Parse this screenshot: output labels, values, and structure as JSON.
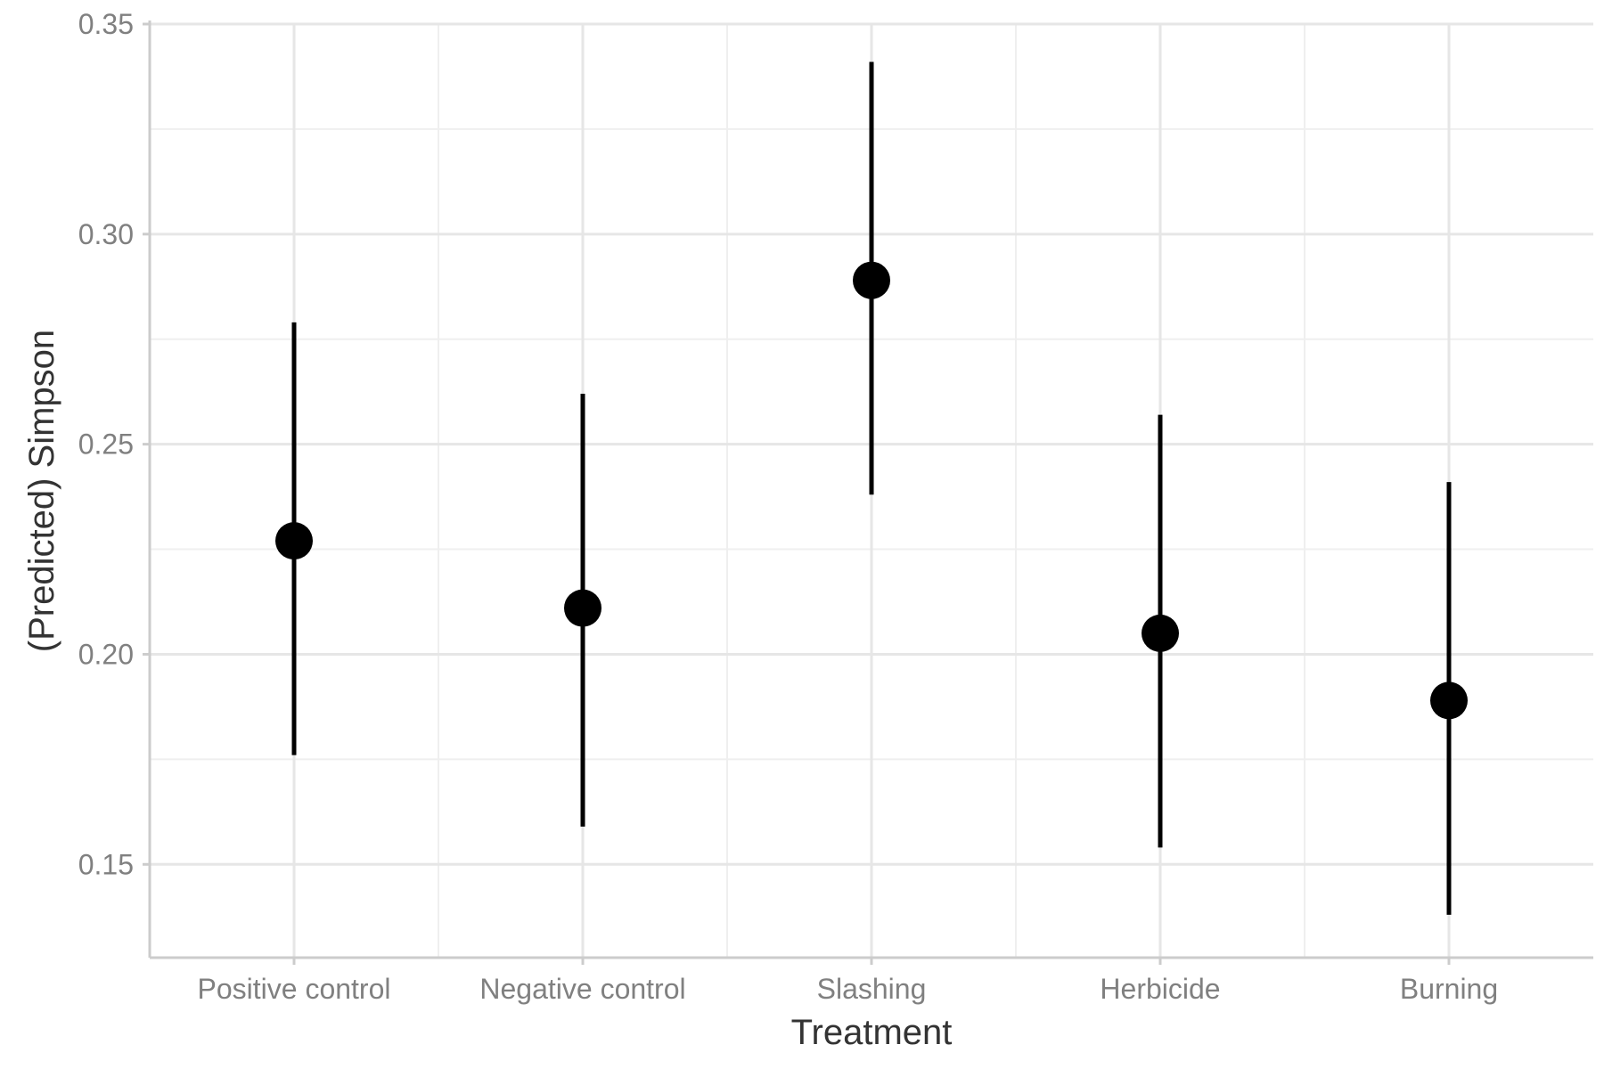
{
  "chart_data": {
    "type": "scatter",
    "title": "",
    "xlabel": "Treatment",
    "ylabel": "(Predicted) Simpson",
    "categories": [
      "Positive control",
      "Negative control",
      "Slashing",
      "Herbicide",
      "Burning"
    ],
    "values": [
      0.227,
      0.211,
      0.289,
      0.205,
      0.189
    ],
    "lower": [
      0.176,
      0.159,
      0.238,
      0.154,
      0.138
    ],
    "upper": [
      0.279,
      0.262,
      0.341,
      0.257,
      0.241
    ],
    "ylim": [
      0.1278,
      0.35
    ],
    "yticks": [
      0.15,
      0.2,
      0.25,
      0.3,
      0.35
    ],
    "ytick_labels": [
      "0.15",
      "0.20",
      "0.25",
      "0.30",
      "0.35"
    ],
    "grid": true,
    "legend": "none",
    "point_color": "#000000"
  }
}
